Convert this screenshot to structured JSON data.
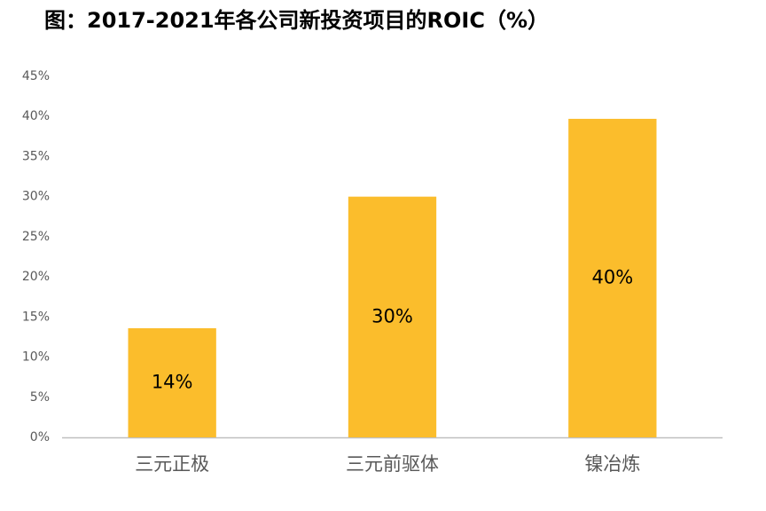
{
  "chart_data": {
    "type": "bar",
    "title": "图：2017-2021年各公司新投资项目的ROIC（%）",
    "categories": [
      "三元正极",
      "三元前驱体",
      "镍冶炼"
    ],
    "values": [
      13.6,
      30.0,
      39.7
    ],
    "value_labels": [
      "14%",
      "30%",
      "40%"
    ],
    "color": "#fbbd2c",
    "ylim": [
      0,
      45
    ],
    "yticks": [
      {
        "value": 0,
        "label": "0%"
      },
      {
        "value": 5,
        "label": "5%"
      },
      {
        "value": 10,
        "label": "10%"
      },
      {
        "value": 15,
        "label": "15%"
      },
      {
        "value": 20,
        "label": "20%"
      },
      {
        "value": 25,
        "label": "25%"
      },
      {
        "value": 30,
        "label": "30%"
      },
      {
        "value": 35,
        "label": "35%"
      },
      {
        "value": 40,
        "label": "40%"
      },
      {
        "value": 45,
        "label": "45%"
      }
    ],
    "grid": false
  }
}
